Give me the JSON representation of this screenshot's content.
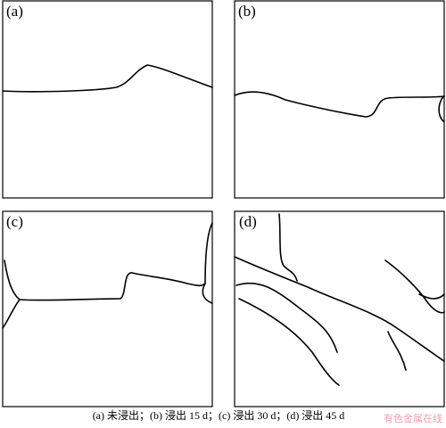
{
  "panels": [
    {
      "label": "(a)"
    },
    {
      "label": "(b)"
    },
    {
      "label": "(c)"
    },
    {
      "label": "(d)"
    }
  ],
  "caption": "(a) 未浸出；(b) 浸出 15 d；(c) 浸出 30 d；(d) 浸出 45 d",
  "watermark": "有色金属在线"
}
